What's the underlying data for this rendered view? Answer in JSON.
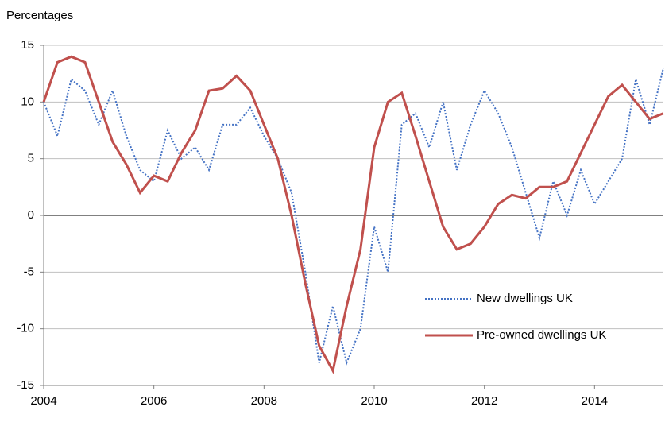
{
  "chart_data": {
    "type": "line",
    "y_label": "Percentages",
    "x": [
      2004,
      2004.25,
      2004.5,
      2004.75,
      2005,
      2005.25,
      2005.5,
      2005.75,
      2006,
      2006.25,
      2006.5,
      2006.75,
      2007,
      2007.25,
      2007.5,
      2007.75,
      2008,
      2008.25,
      2008.5,
      2008.75,
      2009,
      2009.25,
      2009.5,
      2009.75,
      2010,
      2010.25,
      2010.5,
      2010.75,
      2011,
      2011.25,
      2011.5,
      2011.75,
      2012,
      2012.25,
      2012.5,
      2012.75,
      2013,
      2013.25,
      2013.5,
      2013.75,
      2014,
      2014.25,
      2014.5,
      2014.75,
      2015,
      2015.25
    ],
    "series": [
      {
        "name": "New dwellings UK",
        "color": "#4472c4",
        "dash": true,
        "values": [
          10,
          7,
          12,
          11,
          8,
          11,
          7,
          4,
          3,
          7.5,
          5,
          6,
          4,
          8,
          8,
          9.5,
          7,
          5,
          2,
          -5,
          -13,
          -8,
          -13,
          -10,
          -1,
          -5,
          8,
          9,
          6,
          10,
          4,
          8,
          11,
          9,
          6,
          2,
          -2,
          3,
          0,
          4,
          1,
          3,
          5,
          12,
          8,
          13
        ]
      },
      {
        "name": "Pre-owned dwellings UK",
        "color": "#c0504d",
        "dash": false,
        "values": [
          10,
          13.5,
          14,
          13.5,
          10,
          6.5,
          4.5,
          2,
          3.5,
          3,
          5.5,
          7.5,
          11,
          11.2,
          12.3,
          11,
          8,
          5,
          0,
          -6,
          -11.5,
          -13.7,
          -8,
          -3,
          6,
          10,
          10.8,
          7,
          3,
          -1,
          -3,
          -2.5,
          -1,
          1,
          1.8,
          1.5,
          2.5,
          2.5,
          3,
          5.5,
          8,
          10.5,
          11.5,
          10,
          8.5,
          9
        ]
      }
    ],
    "xlim": [
      2004,
      2015.25
    ],
    "xticks": [
      2004,
      2006,
      2008,
      2010,
      2012,
      2014
    ],
    "ylim": [
      -15,
      15
    ],
    "yticks": [
      -15,
      -10,
      -5,
      0,
      5,
      10,
      15
    ],
    "grid": true,
    "legend": "lower right"
  }
}
